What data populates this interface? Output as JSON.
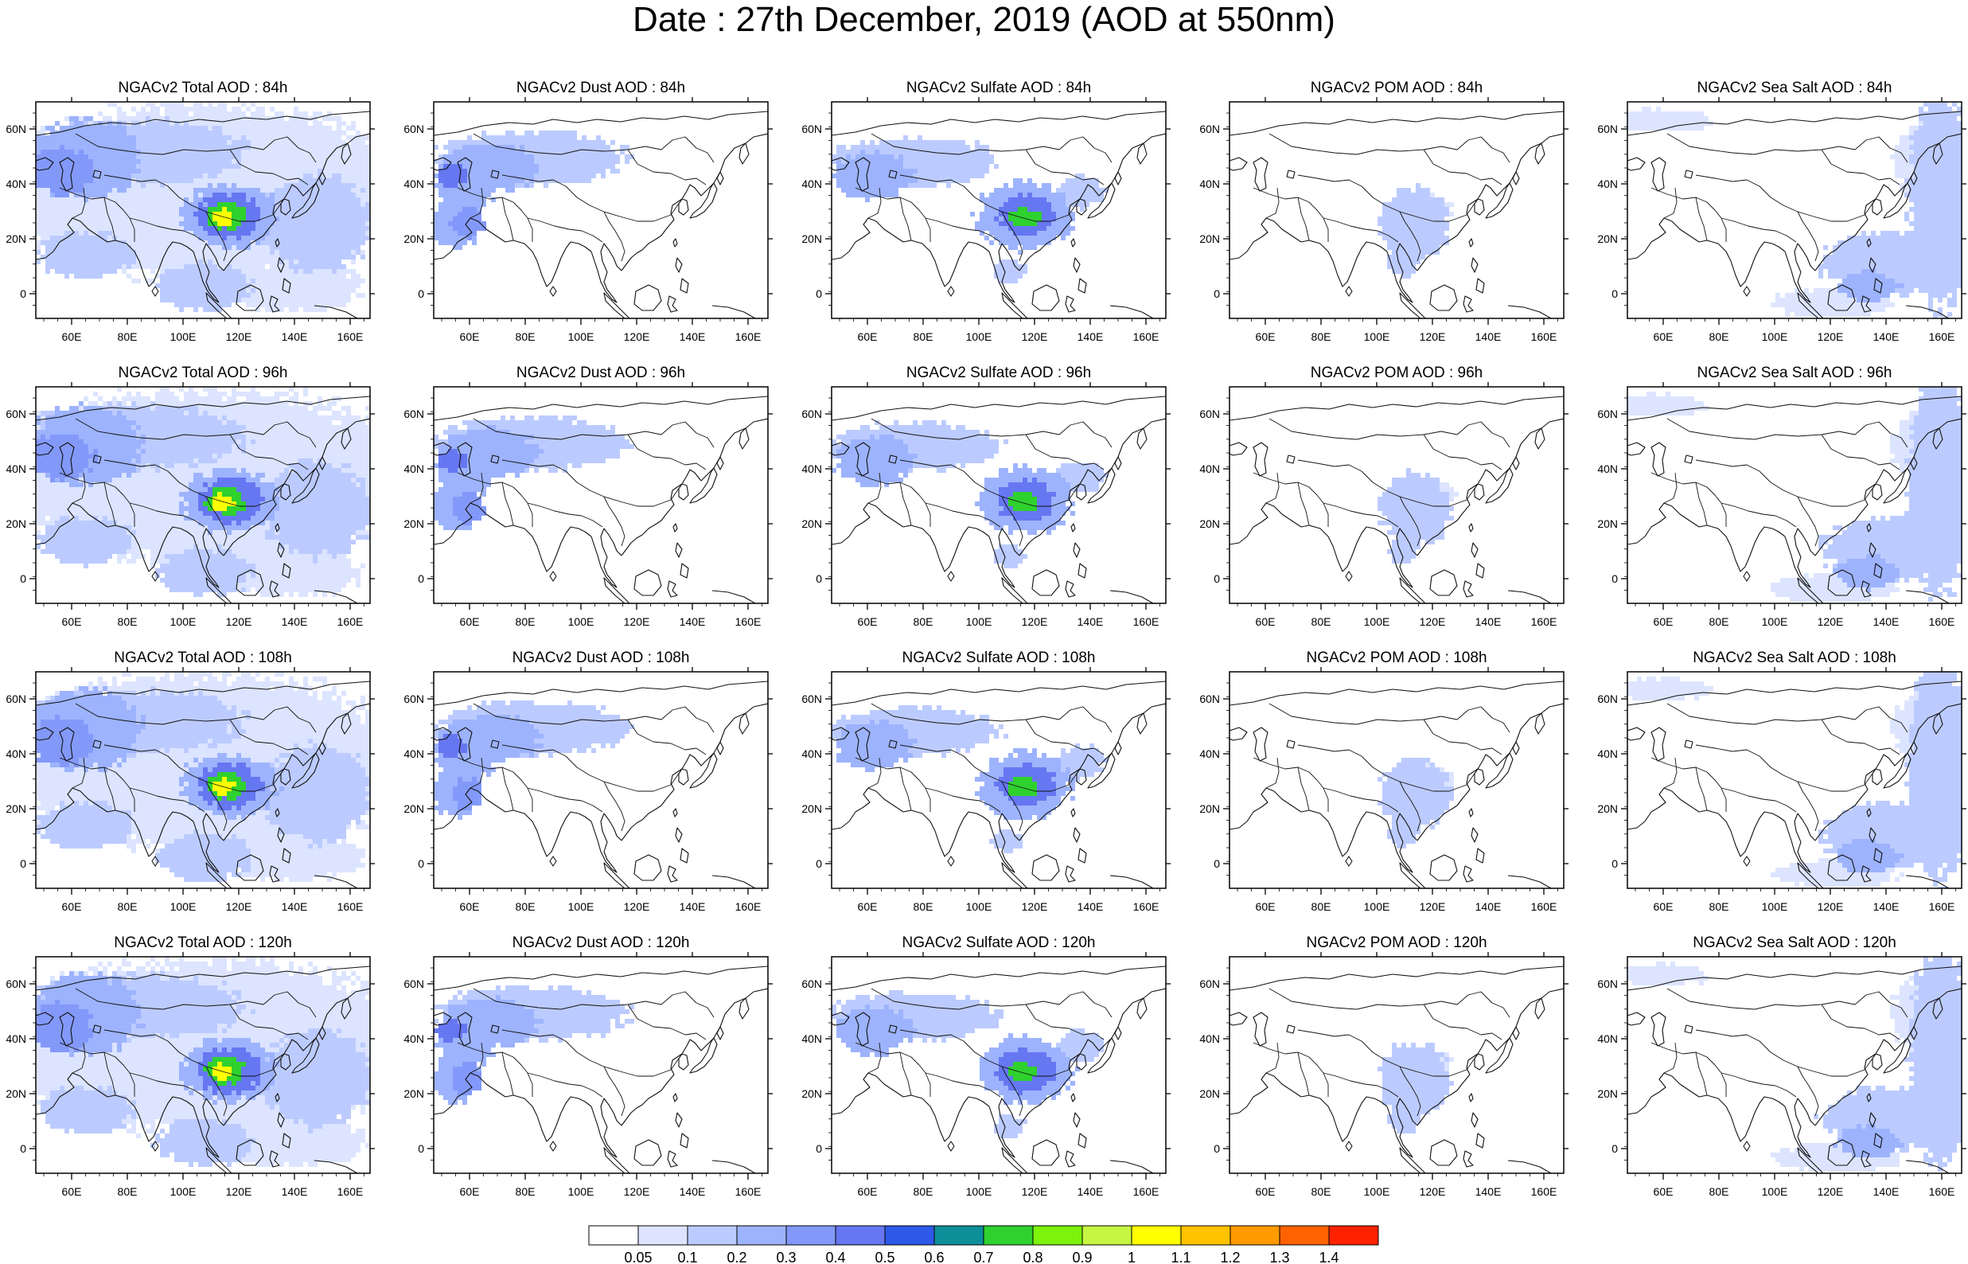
{
  "title": "Date : 27th December, 2019 (AOD at 550nm)",
  "x_ticks": [
    "60E",
    "80E",
    "100E",
    "120E",
    "140E",
    "160E"
  ],
  "y_ticks": [
    "60N",
    "40N",
    "20N",
    "0"
  ],
  "colorbar": {
    "labels": [
      "0.05",
      "0.1",
      "0.2",
      "0.3",
      "0.4",
      "0.5",
      "0.6",
      "0.7",
      "0.8",
      "0.9",
      "1",
      "1.1",
      "1.2",
      "1.3",
      "1.4"
    ],
    "colors": [
      "#ffffff",
      "#dce4ff",
      "#bccbff",
      "#9db3fd",
      "#8399fa",
      "#6677f2",
      "#2e59e8",
      "#0d8f9a",
      "#2fd12f",
      "#7df20a",
      "#c6f542",
      "#ffff00",
      "#ffc300",
      "#ff9a00",
      "#ff6200",
      "#ff2200"
    ]
  },
  "panels": [
    {
      "title": "NGACv2 Total AOD : 84h",
      "species": "total"
    },
    {
      "title": "NGACv2 Dust AOD : 84h",
      "species": "dust"
    },
    {
      "title": "NGACv2 Sulfate AOD : 84h",
      "species": "sulfate"
    },
    {
      "title": "NGACv2 POM AOD : 84h",
      "species": "pom"
    },
    {
      "title": "NGACv2 Sea Salt AOD : 84h",
      "species": "seasalt"
    },
    {
      "title": "NGACv2 Total AOD : 96h",
      "species": "total"
    },
    {
      "title": "NGACv2 Dust AOD : 96h",
      "species": "dust"
    },
    {
      "title": "NGACv2 Sulfate AOD : 96h",
      "species": "sulfate"
    },
    {
      "title": "NGACv2 POM AOD : 96h",
      "species": "pom"
    },
    {
      "title": "NGACv2 Sea Salt AOD : 96h",
      "species": "seasalt"
    },
    {
      "title": "NGACv2 Total AOD : 108h",
      "species": "total"
    },
    {
      "title": "NGACv2 Dust AOD : 108h",
      "species": "dust"
    },
    {
      "title": "NGACv2 Sulfate AOD : 108h",
      "species": "sulfate"
    },
    {
      "title": "NGACv2 POM AOD : 108h",
      "species": "pom"
    },
    {
      "title": "NGACv2 Sea Salt AOD : 108h",
      "species": "seasalt"
    },
    {
      "title": "NGACv2 Total AOD : 120h",
      "species": "total"
    },
    {
      "title": "NGACv2 Dust AOD : 120h",
      "species": "dust"
    },
    {
      "title": "NGACv2 Sulfate AOD : 120h",
      "species": "sulfate"
    },
    {
      "title": "NGACv2 POM AOD : 120h",
      "species": "pom"
    },
    {
      "title": "NGACv2 Sea Salt  AOD : 120h",
      "species": "seasalt"
    }
  ]
}
